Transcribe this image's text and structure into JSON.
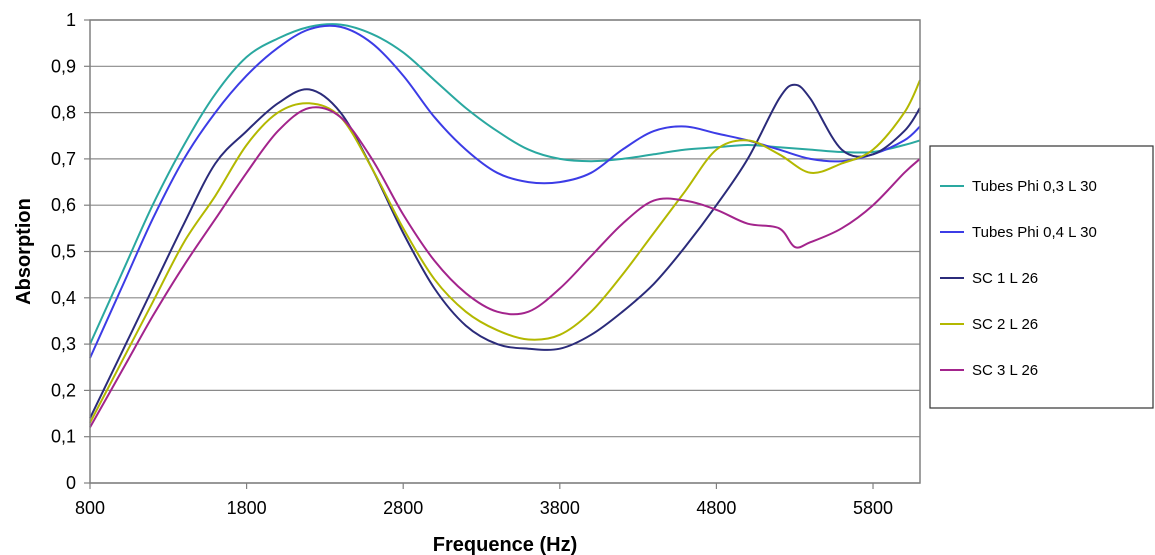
{
  "chart_data": {
    "type": "line",
    "title": "",
    "xlabel": "Frequence (Hz)",
    "ylabel": "Absorption",
    "xlim": [
      800,
      6100
    ],
    "ylim": [
      0,
      1
    ],
    "x_ticks": [
      800,
      1800,
      2800,
      3800,
      4800,
      5800
    ],
    "x_tick_labels": [
      "800",
      "1800",
      "2800",
      "3800",
      "4800",
      "5800"
    ],
    "y_ticks": [
      0,
      0.1,
      0.2,
      0.3,
      0.4,
      0.5,
      0.6,
      0.7,
      0.8,
      0.9,
      1
    ],
    "y_tick_labels": [
      "0",
      "0,1",
      "0,2",
      "0,3",
      "0,4",
      "0,5",
      "0,6",
      "0,7",
      "0,8",
      "0,9",
      "1"
    ],
    "grid": "horizontal",
    "legend_position": "right",
    "series": [
      {
        "name": "Tubes Phi 0,3 L 30",
        "color": "#2aa8a0",
        "x": [
          800,
          1000,
          1200,
          1400,
          1600,
          1800,
          2000,
          2200,
          2400,
          2600,
          2800,
          3000,
          3200,
          3400,
          3600,
          3800,
          4000,
          4200,
          4400,
          4600,
          4800,
          5000,
          5200,
          5400,
          5600,
          5800,
          6000,
          6100
        ],
        "y": [
          0.3,
          0.45,
          0.6,
          0.73,
          0.84,
          0.92,
          0.96,
          0.985,
          0.99,
          0.97,
          0.93,
          0.87,
          0.81,
          0.76,
          0.72,
          0.7,
          0.695,
          0.7,
          0.71,
          0.72,
          0.725,
          0.73,
          0.725,
          0.72,
          0.715,
          0.715,
          0.73,
          0.74
        ]
      },
      {
        "name": "Tubes Phi 0,4 L 30",
        "color": "#3c3ce6",
        "x": [
          800,
          1000,
          1200,
          1400,
          1600,
          1800,
          2000,
          2200,
          2400,
          2600,
          2800,
          3000,
          3200,
          3400,
          3600,
          3800,
          4000,
          4200,
          4400,
          4600,
          4800,
          5000,
          5200,
          5400,
          5600,
          5800,
          6000,
          6100
        ],
        "y": [
          0.27,
          0.42,
          0.57,
          0.7,
          0.8,
          0.88,
          0.94,
          0.98,
          0.985,
          0.95,
          0.88,
          0.79,
          0.72,
          0.67,
          0.65,
          0.65,
          0.67,
          0.72,
          0.76,
          0.77,
          0.755,
          0.74,
          0.72,
          0.7,
          0.695,
          0.71,
          0.74,
          0.77
        ]
      },
      {
        "name": "SC 1 L 26",
        "color": "#2b2b7a",
        "x": [
          800,
          1000,
          1200,
          1400,
          1600,
          1800,
          2000,
          2200,
          2400,
          2600,
          2800,
          3000,
          3200,
          3400,
          3600,
          3800,
          4000,
          4200,
          4400,
          4600,
          4800,
          5000,
          5200,
          5300,
          5400,
          5600,
          5800,
          6000,
          6100
        ],
        "y": [
          0.14,
          0.28,
          0.42,
          0.56,
          0.69,
          0.76,
          0.82,
          0.85,
          0.8,
          0.68,
          0.54,
          0.42,
          0.34,
          0.3,
          0.29,
          0.29,
          0.32,
          0.37,
          0.43,
          0.51,
          0.6,
          0.7,
          0.83,
          0.86,
          0.83,
          0.72,
          0.71,
          0.76,
          0.81
        ]
      },
      {
        "name": "SC 2 L 26",
        "color": "#b3b800",
        "x": [
          800,
          1000,
          1200,
          1400,
          1600,
          1800,
          2000,
          2200,
          2400,
          2600,
          2800,
          3000,
          3200,
          3400,
          3600,
          3800,
          4000,
          4200,
          4400,
          4600,
          4800,
          5000,
          5200,
          5400,
          5600,
          5800,
          6000,
          6100
        ],
        "y": [
          0.13,
          0.26,
          0.39,
          0.52,
          0.62,
          0.73,
          0.8,
          0.82,
          0.79,
          0.68,
          0.55,
          0.44,
          0.37,
          0.33,
          0.31,
          0.32,
          0.37,
          0.45,
          0.54,
          0.63,
          0.72,
          0.74,
          0.71,
          0.67,
          0.69,
          0.72,
          0.8,
          0.87
        ]
      },
      {
        "name": "SC 3 L 26",
        "color": "#a3248c",
        "x": [
          800,
          1000,
          1200,
          1400,
          1600,
          1800,
          2000,
          2200,
          2400,
          2600,
          2800,
          3000,
          3200,
          3400,
          3600,
          3800,
          4000,
          4200,
          4400,
          4600,
          4800,
          5000,
          5200,
          5300,
          5400,
          5600,
          5800,
          6000,
          6100
        ],
        "y": [
          0.12,
          0.24,
          0.36,
          0.47,
          0.57,
          0.67,
          0.76,
          0.81,
          0.79,
          0.7,
          0.58,
          0.48,
          0.41,
          0.37,
          0.37,
          0.42,
          0.49,
          0.56,
          0.61,
          0.61,
          0.59,
          0.56,
          0.55,
          0.51,
          0.52,
          0.55,
          0.6,
          0.67,
          0.7
        ]
      }
    ]
  }
}
